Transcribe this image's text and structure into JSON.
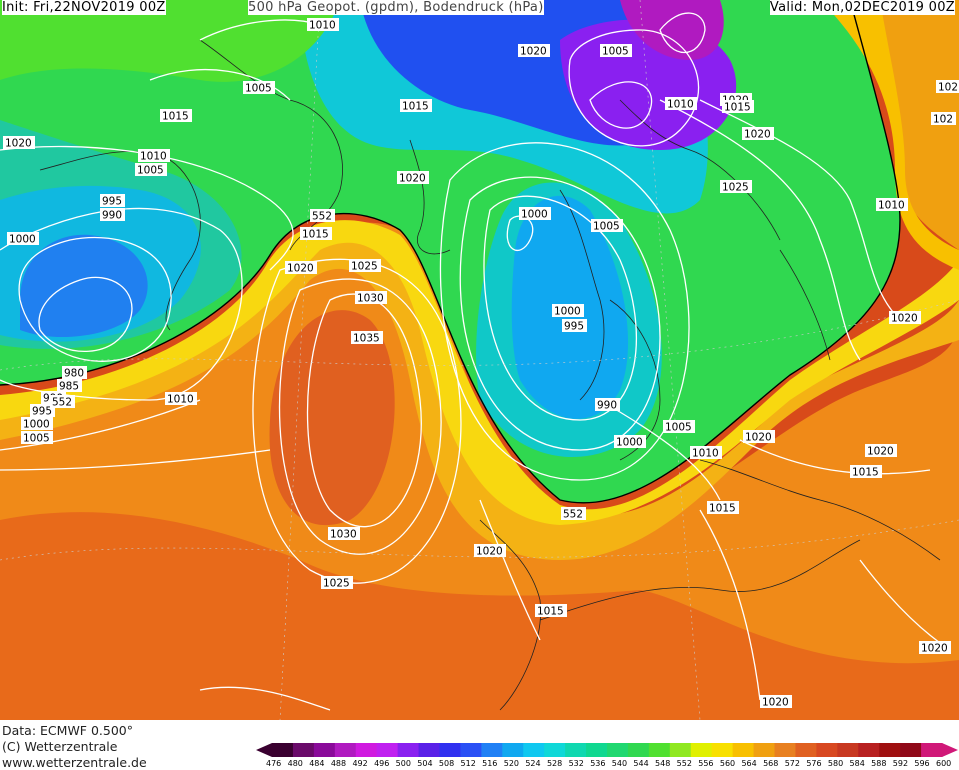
{
  "header": {
    "init": "Init: Fri,22NOV2019 00Z",
    "title": "500 hPa Geopot. (gpdm), Bodendruck (hPa)",
    "valid": "Valid: Mon,02DEC2019 00Z"
  },
  "footer": {
    "data_source": "Data: ECMWF  0.500°",
    "copyright": "(C) Wetterzentrale",
    "url": "www.wetterzentrale.de"
  },
  "colorbar": {
    "values": [
      "476",
      "480",
      "484",
      "488",
      "492",
      "496",
      "500",
      "504",
      "508",
      "512",
      "516",
      "520",
      "524",
      "528",
      "532",
      "536",
      "540",
      "544",
      "548",
      "552",
      "556",
      "560",
      "564",
      "568",
      "572",
      "576",
      "580",
      "584",
      "588",
      "592",
      "596",
      "600"
    ],
    "colors": [
      "#3a0030",
      "#6a0a6a",
      "#8a0a9a",
      "#b01ac0",
      "#d01ae0",
      "#c020f0",
      "#8a20f0",
      "#5a20e8",
      "#3030f0",
      "#2a50f5",
      "#2080f5",
      "#10a8f0",
      "#10c8f0",
      "#10d8d8",
      "#10d8b0",
      "#10d890",
      "#20d870",
      "#30d850",
      "#50e030",
      "#90e820",
      "#e0f000",
      "#f8e000",
      "#f8c000",
      "#f0a010",
      "#e88020",
      "#e06020",
      "#d84820",
      "#c83820",
      "#b82020",
      "#a01010",
      "#900818",
      "#d01878"
    ]
  },
  "isobar_labels": [
    {
      "text": "1010"
    },
    {
      "text": "1020"
    },
    {
      "text": "1005"
    },
    {
      "text": "1005"
    },
    {
      "text": "1015"
    },
    {
      "text": "1015"
    },
    {
      "text": "995"
    },
    {
      "text": "1020"
    },
    {
      "text": "1010"
    },
    {
      "text": "1005"
    },
    {
      "text": "995"
    },
    {
      "text": "990"
    },
    {
      "text": "1000"
    },
    {
      "text": "1020"
    },
    {
      "text": "1015"
    },
    {
      "text": "1020"
    },
    {
      "text": "1025"
    },
    {
      "text": "1030"
    },
    {
      "text": "1035"
    },
    {
      "text": "1000"
    },
    {
      "text": "1005"
    },
    {
      "text": "1000"
    },
    {
      "text": "995"
    },
    {
      "text": "990"
    },
    {
      "text": "1000"
    },
    {
      "text": "1005"
    },
    {
      "text": "1010"
    },
    {
      "text": "1015"
    },
    {
      "text": "1020"
    },
    {
      "text": "1025"
    },
    {
      "text": "1020"
    },
    {
      "text": "1010"
    },
    {
      "text": "1020"
    },
    {
      "text": "1015"
    },
    {
      "text": "1020"
    },
    {
      "text": "1010"
    },
    {
      "text": "1030"
    },
    {
      "text": "1025"
    },
    {
      "text": "1020"
    },
    {
      "text": "1015"
    },
    {
      "text": "1020"
    },
    {
      "text": "1020"
    },
    {
      "text": "980"
    },
    {
      "text": "985"
    },
    {
      "text": "990"
    },
    {
      "text": "995"
    },
    {
      "text": "1000"
    },
    {
      "text": "1005"
    },
    {
      "text": "1010"
    },
    {
      "text": "1020"
    },
    {
      "text": "1005"
    },
    {
      "text": "1015"
    },
    {
      "text": "552"
    },
    {
      "text": "552"
    },
    {
      "text": "552"
    },
    {
      "text": "102"
    },
    {
      "text": "102"
    }
  ]
}
